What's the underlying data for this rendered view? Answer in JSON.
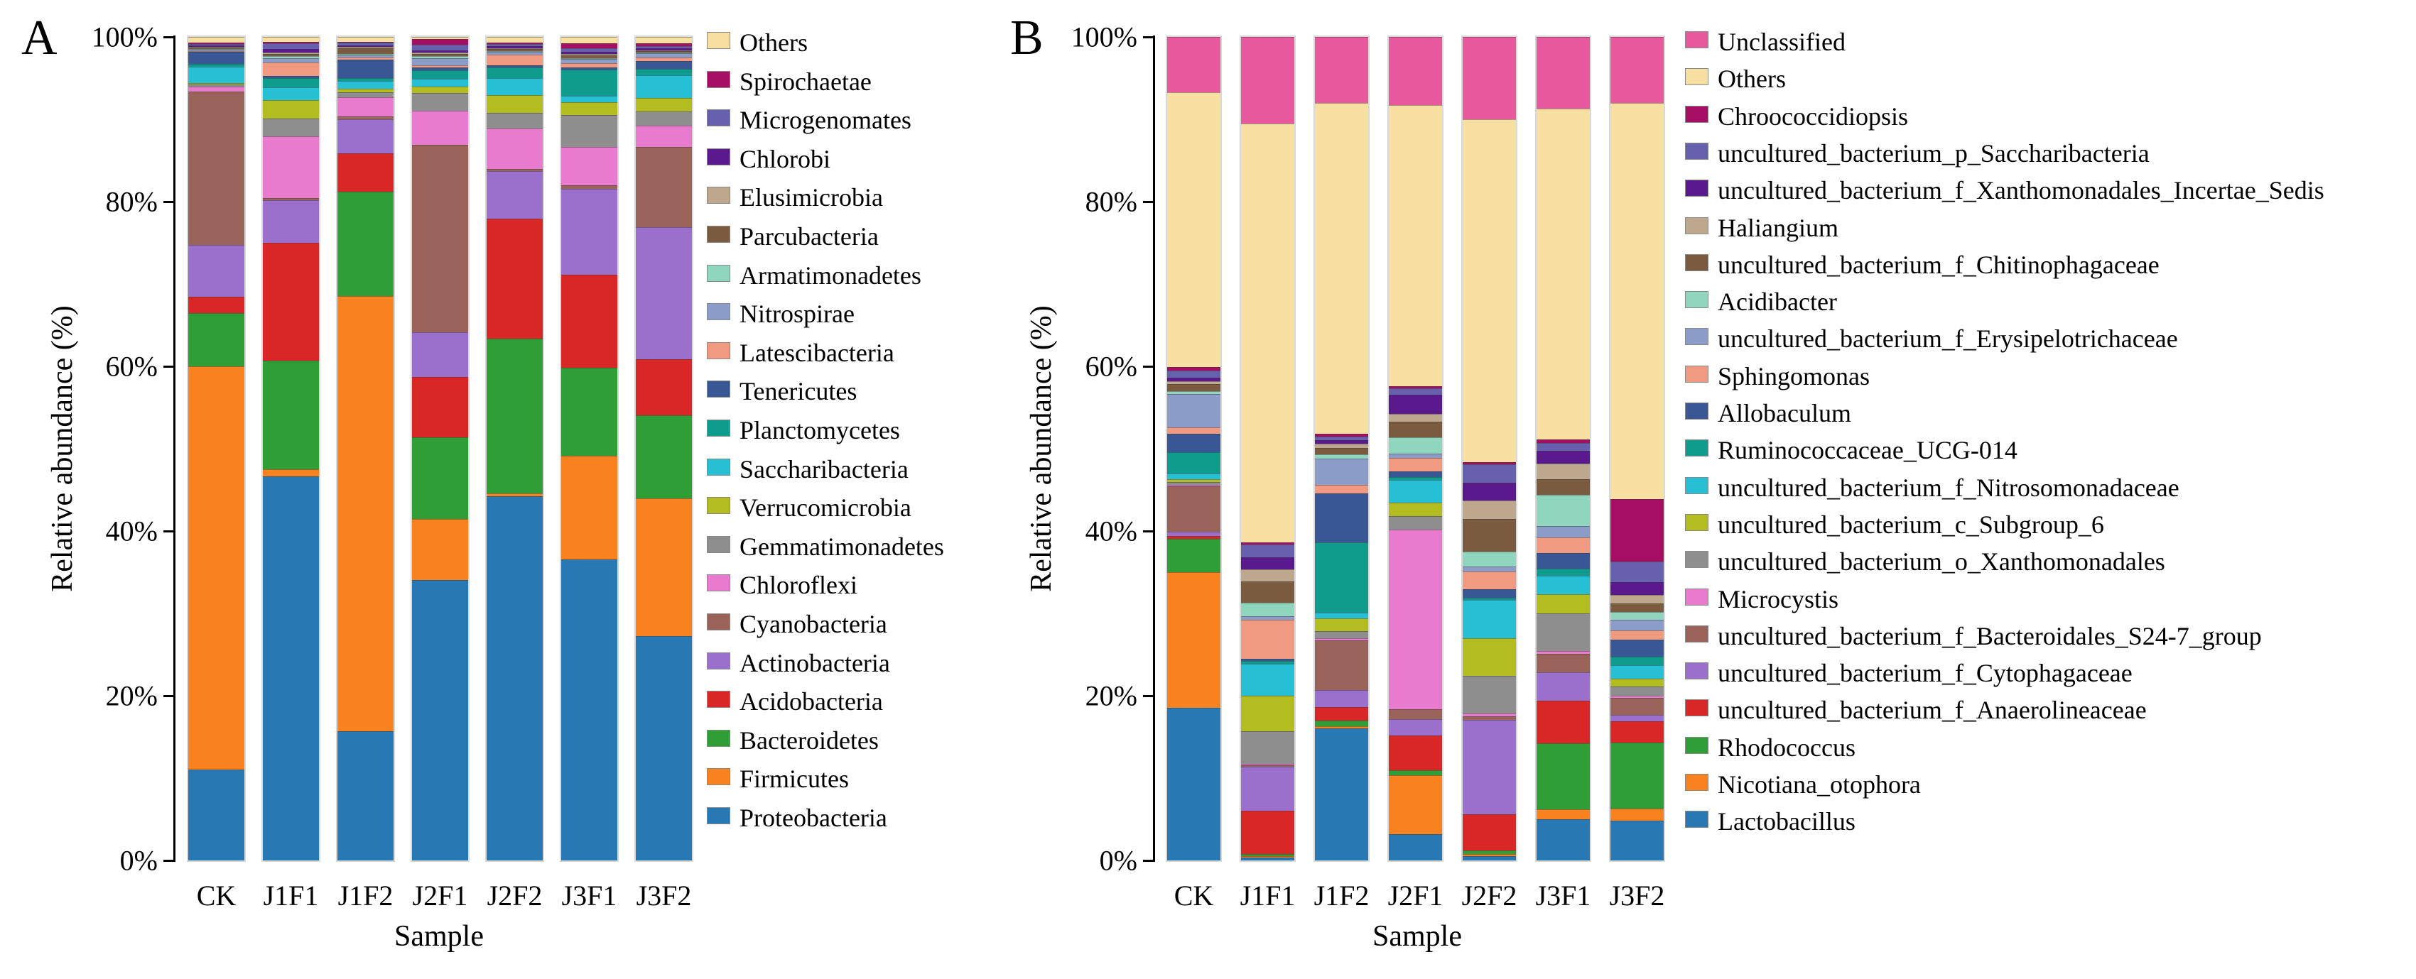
{
  "figure": {
    "panel_a_letter": "A",
    "panel_b_letter": "B",
    "ylabel": "Relative abundance (%)",
    "xlabel": "Sample",
    "ytick_labels": [
      "100%",
      "80%",
      "60%",
      "40%",
      "20%",
      "0%"
    ]
  },
  "chart_data": [
    {
      "type": "bar",
      "subtype": "stacked-percent",
      "panel": "A",
      "title": "",
      "xlabel": "Sample",
      "ylabel": "Relative abundance (%)",
      "ylim": [
        0,
        100
      ],
      "grid": false,
      "legend_position": "right",
      "categories": [
        "CK",
        "J1F1",
        "J1F2",
        "J2F1",
        "J2F2",
        "J3F1",
        "J3F2"
      ],
      "series_note": "listed legend-top-first; stacking order in bars is bottom=last item",
      "series": [
        {
          "name": "Others",
          "color": "#F7DFA2",
          "values": [
            0.7,
            0.6,
            0.6,
            0.3,
            0.7,
            0.8,
            0.8
          ]
        },
        {
          "name": "Spirochaetae",
          "color": "#A60E63",
          "values": [
            0.15,
            0.15,
            0.15,
            0.7,
            0.15,
            0.6,
            0.3
          ]
        },
        {
          "name": "Microgenomates",
          "color": "#6761AD",
          "values": [
            0.2,
            0.7,
            0.3,
            0.7,
            0.3,
            0.4,
            0.3
          ]
        },
        {
          "name": "Chlorobi",
          "color": "#5A1A8E",
          "values": [
            0.15,
            0.45,
            0.2,
            0.2,
            0.2,
            0.3,
            0.2
          ]
        },
        {
          "name": "Elusimicrobia",
          "color": "#BDA88E",
          "values": [
            0.1,
            0.2,
            0.2,
            0.2,
            0.1,
            0.15,
            0.1
          ]
        },
        {
          "name": "Parcubacteria",
          "color": "#7B5B3F",
          "values": [
            0.2,
            0.3,
            0.7,
            0.3,
            0.3,
            0.3,
            0.2
          ]
        },
        {
          "name": "Armatimonadetes",
          "color": "#90D6BE",
          "values": [
            0.1,
            0.2,
            0.15,
            0.2,
            0.1,
            0.15,
            0.1
          ]
        },
        {
          "name": "Nitrospirae",
          "color": "#8C9CC9",
          "values": [
            0.15,
            0.6,
            0.3,
            0.9,
            0.3,
            0.5,
            0.5
          ]
        },
        {
          "name": "Latescibacteria",
          "color": "#F09A82",
          "values": [
            0.15,
            1.6,
            0.2,
            0.3,
            1.3,
            0.5,
            0.4
          ]
        },
        {
          "name": "Tenericutes",
          "color": "#3A5795",
          "values": [
            1.5,
            0.3,
            2.3,
            0.3,
            0.3,
            0.3,
            1.0
          ]
        },
        {
          "name": "Planctomycetes",
          "color": "#109C8C",
          "values": [
            0.3,
            1.1,
            0.4,
            1.1,
            1.3,
            3.2,
            0.7
          ]
        },
        {
          "name": "Saccharibacteria",
          "color": "#27BFD4",
          "values": [
            2.0,
            1.6,
            0.9,
            0.9,
            2.0,
            0.7,
            2.8
          ]
        },
        {
          "name": "Verrucomicrobia",
          "color": "#B4BD20",
          "values": [
            0.25,
            2.3,
            0.5,
            0.8,
            2.2,
            1.6,
            1.6
          ]
        },
        {
          "name": "Gemmatimonadetes",
          "color": "#8E8E8E",
          "values": [
            0.25,
            2.2,
            0.6,
            2.2,
            1.9,
            3.9,
            1.7
          ]
        },
        {
          "name": "Chloroflexi",
          "color": "#E87BCE",
          "values": [
            0.6,
            7.6,
            2.4,
            4.2,
            4.9,
            4.6,
            2.6
          ]
        },
        {
          "name": "Cyanobacteria",
          "color": "#99635A",
          "values": [
            19.0,
            0.3,
            0.3,
            23.0,
            0.3,
            0.5,
            9.7
          ]
        },
        {
          "name": "Actinobacteria",
          "color": "#9B70CC",
          "values": [
            6.5,
            5.3,
            4.3,
            5.5,
            5.7,
            10.4,
            15.9
          ]
        },
        {
          "name": "Acidobacteria",
          "color": "#D92728",
          "values": [
            2.0,
            14.5,
            4.7,
            7.5,
            14.6,
            11.3,
            6.8
          ]
        },
        {
          "name": "Bacteroidetes",
          "color": "#2F9E37",
          "values": [
            6.6,
            13.5,
            13.0,
            10.0,
            18.8,
            10.7,
            10.0
          ]
        },
        {
          "name": "Firmicutes",
          "color": "#F8821F",
          "values": [
            50.0,
            0.8,
            54.0,
            7.5,
            0.4,
            12.6,
            16.6
          ]
        },
        {
          "name": "Proteobacteria",
          "color": "#2878B4",
          "values": [
            11.3,
            47.5,
            16.0,
            34.5,
            44.2,
            36.5,
            27.1
          ]
        }
      ]
    },
    {
      "type": "bar",
      "subtype": "stacked-percent",
      "panel": "B",
      "title": "",
      "xlabel": "Sample",
      "ylabel": "Relative abundance (%)",
      "ylim": [
        0,
        100
      ],
      "grid": false,
      "legend_position": "right",
      "categories": [
        "CK",
        "J1F1",
        "J1F2",
        "J2F1",
        "J2F2",
        "J3F1",
        "J3F2"
      ],
      "series_note": "listed legend-top-first; stacking order in bars is bottom=last item",
      "series": [
        {
          "name": "Unclassified",
          "color": "#E8589C",
          "values": [
            6.7,
            10.5,
            8.0,
            8.3,
            10.0,
            8.7,
            8.0
          ]
        },
        {
          "name": "Others",
          "color": "#F7DFA2",
          "values": [
            33.4,
            50.6,
            40.2,
            34.3,
            41.6,
            40.2,
            48.1
          ]
        },
        {
          "name": "Chroococcidiopsis",
          "color": "#A60E63",
          "values": [
            0.4,
            0.3,
            0.3,
            0.3,
            0.3,
            0.4,
            7.6
          ]
        },
        {
          "name": "uncultured_bacterium_p_Saccharibacteria",
          "color": "#6761AD",
          "values": [
            0.9,
            1.5,
            0.5,
            0.8,
            2.2,
            1.0,
            2.5
          ]
        },
        {
          "name": "uncultured_bacterium_f_Xanthomonadales_Incertae_Sedis",
          "color": "#5A1A8E",
          "values": [
            0.4,
            1.5,
            0.4,
            2.3,
            2.2,
            1.5,
            1.6
          ]
        },
        {
          "name": "Haliangium",
          "color": "#BDA88E",
          "values": [
            0.4,
            1.5,
            0.5,
            1.0,
            2.2,
            1.9,
            1.0
          ]
        },
        {
          "name": "uncultured_bacterium_f_Chitinophagaceae",
          "color": "#7B5B3F",
          "values": [
            0.8,
            2.5,
            0.8,
            1.9,
            4.0,
            1.9,
            1.0
          ]
        },
        {
          "name": "Acidibacter",
          "color": "#90D6BE",
          "values": [
            0.4,
            1.7,
            0.5,
            2.0,
            1.8,
            3.8,
            1.0
          ]
        },
        {
          "name": "uncultured_bacterium_f_Erysipelotrichaceae",
          "color": "#8C9CC9",
          "values": [
            4.0,
            0.4,
            3.2,
            0.5,
            0.6,
            1.4,
            1.3
          ]
        },
        {
          "name": "Sphingomonas",
          "color": "#F09A82",
          "values": [
            0.8,
            4.7,
            1.0,
            1.6,
            2.2,
            1.9,
            1.1
          ]
        },
        {
          "name": "Allobaculum",
          "color": "#3A5795",
          "values": [
            2.2,
            0.3,
            6.0,
            0.7,
            1.0,
            1.9,
            2.1
          ]
        },
        {
          "name": "Ruminococcaceae_UCG-014",
          "color": "#109C8C",
          "values": [
            2.6,
            0.3,
            8.5,
            0.4,
            0.3,
            0.8,
            1.0
          ]
        },
        {
          "name": "uncultured_bacterium_f_Nitrosomonadaceae",
          "color": "#27BFD4",
          "values": [
            0.7,
            3.9,
            0.7,
            2.7,
            4.6,
            2.3,
            1.6
          ]
        },
        {
          "name": "uncultured_bacterium_c_Subgroup_6",
          "color": "#B4BD20",
          "values": [
            0.4,
            4.3,
            1.6,
            1.7,
            4.6,
            2.3,
            1.0
          ]
        },
        {
          "name": "uncultured_bacterium_o_Xanthomonadales",
          "color": "#8E8E8E",
          "values": [
            0.3,
            3.9,
            0.8,
            1.6,
            4.6,
            4.6,
            1.1
          ]
        },
        {
          "name": "Microcystis",
          "color": "#E87BCE",
          "values": [
            0.2,
            0.2,
            0.3,
            22.0,
            0.3,
            0.3,
            0.3
          ]
        },
        {
          "name": "uncultured_bacterium_f_Bacteroidales_S24-7_group",
          "color": "#99635A",
          "values": [
            5.5,
            0.2,
            6.0,
            1.2,
            0.4,
            2.3,
            2.0
          ]
        },
        {
          "name": "uncultured_bacterium_f_Cytophagaceae",
          "color": "#9B70CC",
          "values": [
            0.5,
            5.3,
            2.1,
            2.0,
            11.5,
            3.4,
            0.8
          ]
        },
        {
          "name": "uncultured_bacterium_f_Anaerolineaceae",
          "color": "#D92728",
          "values": [
            0.4,
            5.2,
            1.6,
            4.2,
            4.4,
            5.2,
            2.6
          ]
        },
        {
          "name": "Rhodococcus",
          "color": "#2F9E37",
          "values": [
            4.0,
            0.3,
            0.7,
            0.6,
            0.4,
            8.0,
            8.0
          ]
        },
        {
          "name": "Nicotiana_otophora",
          "color": "#F8821F",
          "values": [
            16.5,
            0.2,
            0.3,
            7.2,
            0.3,
            1.2,
            1.5
          ]
        },
        {
          "name": "Lactobacillus",
          "color": "#2878B4",
          "values": [
            18.5,
            0.3,
            16.0,
            3.2,
            0.5,
            5.0,
            4.8
          ]
        }
      ]
    }
  ]
}
